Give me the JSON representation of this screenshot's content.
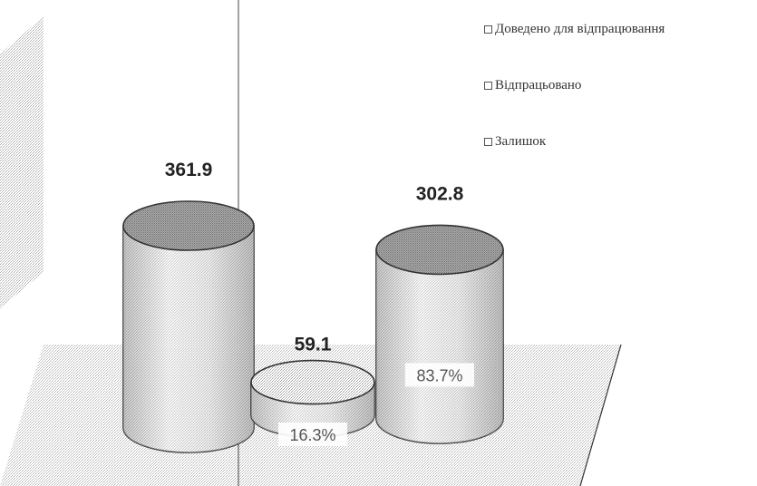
{
  "chart_data": {
    "type": "bar",
    "style": "3d-cylinder",
    "categories": [
      "Доведено для відпрацювання",
      "Відпрацьовано",
      "Залишок"
    ],
    "values": [
      361.9,
      59.1,
      302.8
    ],
    "value_labels": [
      "361.9",
      "59.1",
      "302.8"
    ],
    "percent_labels": [
      "",
      "16.3%",
      "83.7%"
    ],
    "title": "",
    "legend": {
      "placement": "top-right",
      "items": [
        "Доведено для відпрацювання",
        "Відпрацьовано",
        "Залишок"
      ]
    },
    "grid": false
  },
  "colors": {
    "cylinder_body": "#d6d6d6",
    "cylinder_top": "#9a9a9a",
    "outline": "#333333",
    "floor": "#e6e6e6",
    "wall": "#cfcfcf"
  }
}
